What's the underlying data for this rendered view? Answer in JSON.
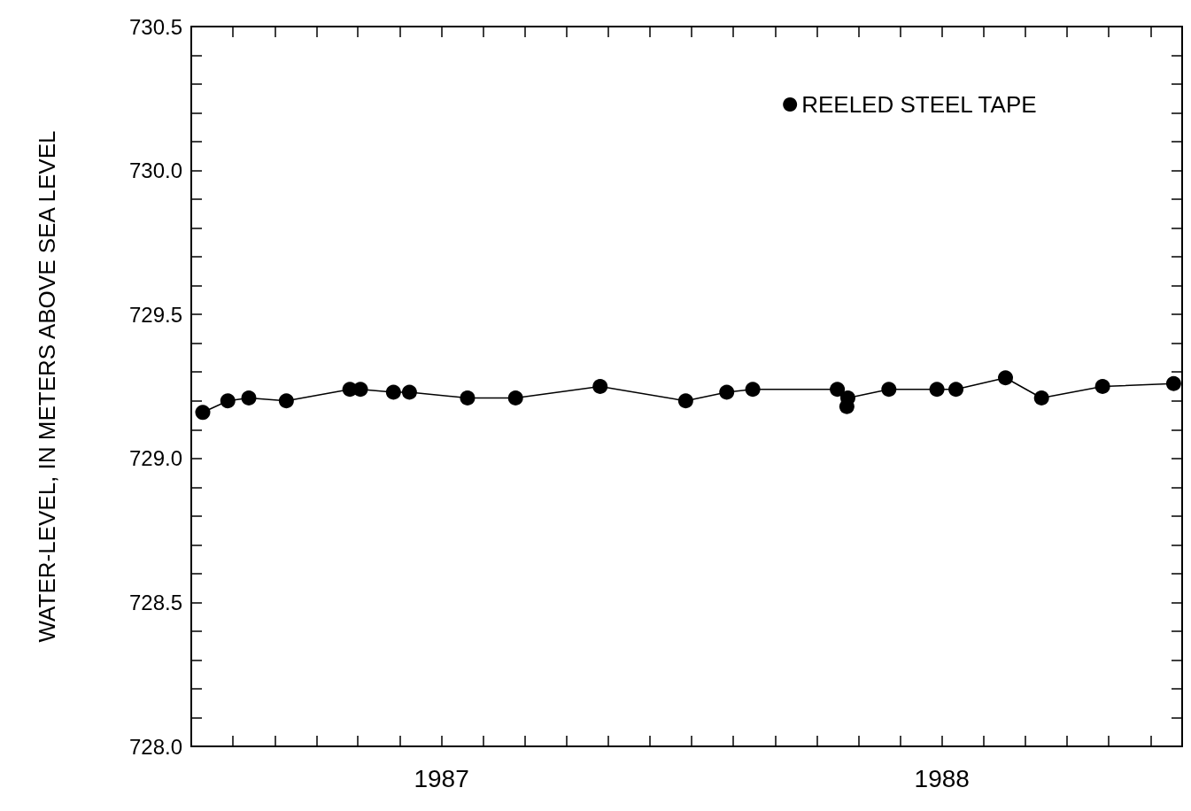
{
  "chart_data": {
    "type": "line",
    "ylabel": "WATER-LEVEL, IN METERS ABOVE SEA LEVEL",
    "x": [
      1987.023,
      1987.073,
      1987.115,
      1987.19,
      1987.317,
      1987.338,
      1987.404,
      1987.436,
      1987.552,
      1987.648,
      1987.817,
      1987.988,
      1988.07,
      1988.122,
      1988.291,
      1988.31,
      1988.312,
      1988.394,
      1988.49,
      1988.528,
      1988.627,
      1988.699,
      1988.821,
      1988.963
    ],
    "series": [
      {
        "name": "REELED STEEL TAPE",
        "color": "#000000",
        "values": [
          729.16,
          729.2,
          729.21,
          729.2,
          729.24,
          729.24,
          729.23,
          729.23,
          729.21,
          729.21,
          729.25,
          729.2,
          729.23,
          729.24,
          729.24,
          729.18,
          729.21,
          729.24,
          729.24,
          729.24,
          729.28,
          729.21,
          729.25,
          729.26
        ]
      }
    ],
    "xlim": [
      1987,
      1988.98
    ],
    "xticks": [
      {
        "value": 1987.083,
        "label": null
      },
      {
        "value": 1987.167,
        "label": null
      },
      {
        "value": 1987.25,
        "label": null
      },
      {
        "value": 1987.333,
        "label": null
      },
      {
        "value": 1987.417,
        "label": null
      },
      {
        "value": 1987.5,
        "label": "1987"
      },
      {
        "value": 1987.583,
        "label": null
      },
      {
        "value": 1987.667,
        "label": null
      },
      {
        "value": 1987.75,
        "label": null
      },
      {
        "value": 1987.833,
        "label": null
      },
      {
        "value": 1987.917,
        "label": null
      },
      {
        "value": 1988,
        "label": null
      },
      {
        "value": 1988.083,
        "label": null
      },
      {
        "value": 1988.167,
        "label": null
      },
      {
        "value": 1988.25,
        "label": null
      },
      {
        "value": 1988.333,
        "label": null
      },
      {
        "value": 1988.417,
        "label": null
      },
      {
        "value": 1988.5,
        "label": "1988"
      },
      {
        "value": 1988.583,
        "label": null
      },
      {
        "value": 1988.667,
        "label": null
      },
      {
        "value": 1988.75,
        "label": null
      },
      {
        "value": 1988.833,
        "label": null
      },
      {
        "value": 1988.917,
        "label": null
      }
    ],
    "ylim": [
      728,
      730.5
    ],
    "yticks": [
      {
        "value": 728,
        "label": "728.0"
      },
      {
        "value": 728.1,
        "label": null
      },
      {
        "value": 728.2,
        "label": null
      },
      {
        "value": 728.3,
        "label": null
      },
      {
        "value": 728.4,
        "label": null
      },
      {
        "value": 728.5,
        "label": "728.5"
      },
      {
        "value": 728.6,
        "label": null
      },
      {
        "value": 728.7,
        "label": null
      },
      {
        "value": 728.8,
        "label": null
      },
      {
        "value": 728.9,
        "label": null
      },
      {
        "value": 729,
        "label": "729.0"
      },
      {
        "value": 729.1,
        "label": null
      },
      {
        "value": 729.2,
        "label": null
      },
      {
        "value": 729.3,
        "label": null
      },
      {
        "value": 729.4,
        "label": null
      },
      {
        "value": 729.5,
        "label": "729.5"
      },
      {
        "value": 729.6,
        "label": null
      },
      {
        "value": 729.7,
        "label": null
      },
      {
        "value": 729.8,
        "label": null
      },
      {
        "value": 729.9,
        "label": null
      },
      {
        "value": 730,
        "label": "730.0"
      },
      {
        "value": 730.1,
        "label": null
      },
      {
        "value": 730.2,
        "label": null
      },
      {
        "value": 730.3,
        "label": null
      },
      {
        "value": 730.4,
        "label": null
      },
      {
        "value": 730.5,
        "label": "730.5"
      }
    ],
    "grid": false,
    "legend": "top right",
    "marker": "circle",
    "line_style": "solid"
  }
}
